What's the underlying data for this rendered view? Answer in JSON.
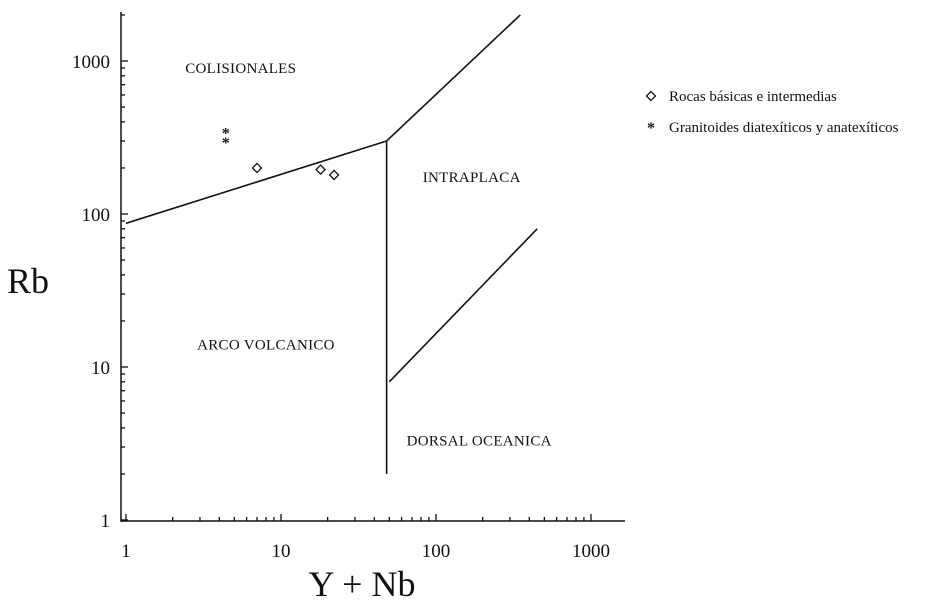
{
  "chart_data": {
    "type": "scatter",
    "title": "",
    "xlabel": "Y + Nb",
    "ylabel": "Rb",
    "xscale": "log",
    "yscale": "log",
    "xlim": [
      1,
      1500
    ],
    "ylim": [
      1,
      2000
    ],
    "xticks": [
      1,
      10,
      100,
      1000
    ],
    "xtick_labels": [
      "1",
      "10",
      "100",
      "1000"
    ],
    "yticks": [
      1,
      10,
      100,
      1000
    ],
    "ytick_labels": [
      "1",
      "10",
      "100",
      "1000"
    ],
    "grid": false,
    "legend_position": "right",
    "regions": [
      {
        "label": "COLISIONALES",
        "x": 5.5,
        "y": 900
      },
      {
        "label": "INTRAPLACA",
        "x": 170,
        "y": 175
      },
      {
        "label": "ARCO VOLCANICO",
        "x": 8,
        "y": 14
      },
      {
        "label": "DORSAL OCEANICA",
        "x": 190,
        "y": 3.3
      }
    ],
    "boundaries": [
      [
        [
          1,
          87
        ],
        [
          48,
          300
        ]
      ],
      [
        [
          48,
          300
        ],
        [
          350,
          2000
        ]
      ],
      [
        [
          48,
          2
        ],
        [
          48,
          300
        ]
      ],
      [
        [
          50,
          8
        ],
        [
          450,
          80
        ]
      ]
    ],
    "series": [
      {
        "name": "Rocas básicas e intermedias",
        "marker": "◇",
        "x": [
          7,
          18,
          22
        ],
        "y": [
          200,
          195,
          180
        ]
      },
      {
        "name": "Granitoides diatexíticos y anatexíticos",
        "marker": "*",
        "x": [
          4.4,
          4.4
        ],
        "y": [
          340,
          295
        ]
      }
    ]
  }
}
